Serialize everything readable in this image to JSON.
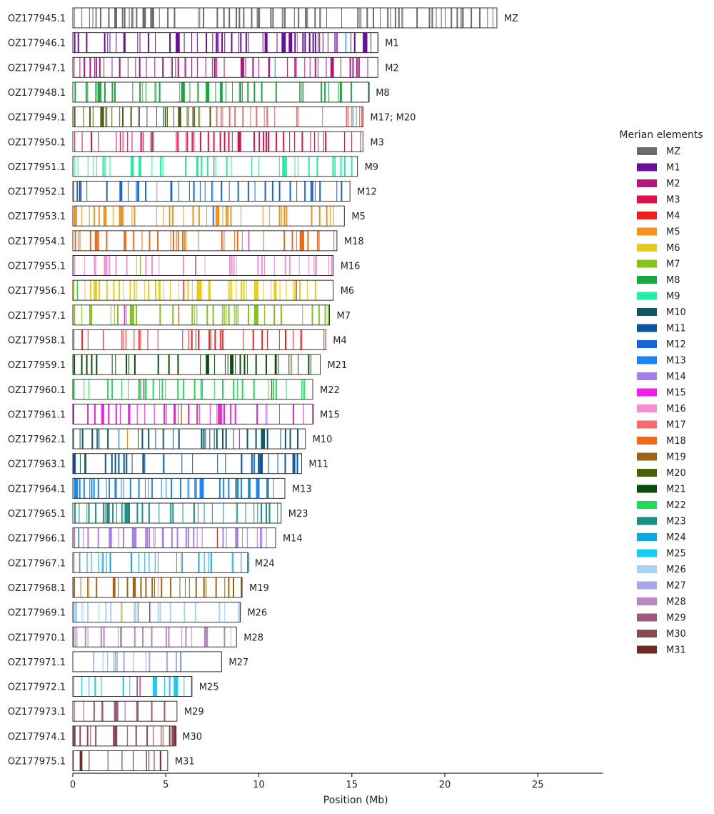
{
  "chart_data": {
    "type": "chromosome-painting",
    "xlabel": "Position (Mb)",
    "xlim": [
      0,
      28.5
    ],
    "xticks": [
      0,
      5,
      10,
      15,
      20,
      25
    ],
    "grid": false,
    "legend": {
      "title": "Merian elements",
      "placement": "right"
    },
    "colors": {
      "MZ": "#6b6b6b",
      "M1": "#6a0e9c",
      "M2": "#b5157e",
      "M3": "#e0104e",
      "M4": "#f01f1f",
      "M5": "#f5921b",
      "M6": "#e8cc15",
      "M7": "#86c21a",
      "M8": "#19a843",
      "M9": "#1ff0a5",
      "M10": "#0c5766",
      "M11": "#0b559f",
      "M12": "#1565d8",
      "M13": "#1a84f0",
      "M14": "#a87df0",
      "M15": "#f21ee8",
      "M16": "#f58ed4",
      "M17": "#f56b6b",
      "M18": "#f06a16",
      "M19": "#9e6414",
      "M20": "#4a5e0e",
      "M21": "#0c4d0c",
      "M22": "#1bde55",
      "M23": "#178f85",
      "M24": "#12a6e0",
      "M25": "#14ccf5",
      "M26": "#a6d4f5",
      "M27": "#a8a8ea",
      "M28": "#b889c0",
      "M29": "#9c5a7e",
      "M30": "#8a4a4e",
      "M31": "#6e2b24"
    },
    "legend_entries": [
      "MZ",
      "M1",
      "M2",
      "M3",
      "M4",
      "M5",
      "M6",
      "M7",
      "M8",
      "M9",
      "M10",
      "M11",
      "M12",
      "M13",
      "M14",
      "M15",
      "M16",
      "M17",
      "M18",
      "M19",
      "M20",
      "M21",
      "M22",
      "M23",
      "M24",
      "M25",
      "M26",
      "M27",
      "M28",
      "M29",
      "M30",
      "M31"
    ],
    "chromosomes": [
      {
        "name": "OZ177945.1",
        "length": 22.8,
        "label": "MZ",
        "primary": "MZ",
        "segments": [
          {
            "element": "MZ",
            "start": 0,
            "end": 22.8
          }
        ],
        "dens": 0.3
      },
      {
        "name": "OZ177946.1",
        "length": 16.4,
        "label": "M1",
        "primary": "M1",
        "segments": [
          {
            "element": "M1",
            "start": 0,
            "end": 16.4
          }
        ],
        "dens": 0.32
      },
      {
        "name": "OZ177947.1",
        "length": 16.4,
        "label": "M2",
        "primary": "M2",
        "segments": [
          {
            "element": "M2",
            "start": 0,
            "end": 16.4
          }
        ],
        "dens": 0.3
      },
      {
        "name": "OZ177948.1",
        "length": 15.9,
        "label": "M8",
        "primary": "M8",
        "segments": [
          {
            "element": "M8",
            "start": 0,
            "end": 15.9
          }
        ],
        "dens": 0.26
      },
      {
        "name": "OZ177949.1",
        "length": 15.6,
        "label": "M17; M20",
        "primary": "M20",
        "segments": [
          {
            "element": "M20",
            "start": 0,
            "end": 7.7
          },
          {
            "element": "M17",
            "start": 7.7,
            "end": 15.6
          }
        ],
        "dens": 0.3
      },
      {
        "name": "OZ177950.1",
        "length": 15.6,
        "label": "M3",
        "primary": "M3",
        "segments": [
          {
            "element": "M3",
            "start": 0,
            "end": 15.6
          }
        ],
        "dens": 0.32
      },
      {
        "name": "OZ177951.1",
        "length": 15.3,
        "label": "M9",
        "primary": "M9",
        "segments": [
          {
            "element": "M9",
            "start": 0,
            "end": 15.3
          }
        ],
        "dens": 0.24
      },
      {
        "name": "OZ177952.1",
        "length": 14.9,
        "label": "M12",
        "primary": "M12",
        "segments": [
          {
            "element": "M12",
            "start": 0,
            "end": 14.9
          }
        ],
        "dens": 0.26
      },
      {
        "name": "OZ177953.1",
        "length": 14.6,
        "label": "M5",
        "primary": "M5",
        "segments": [
          {
            "element": "M5",
            "start": 0,
            "end": 14.6
          }
        ],
        "dens": 0.28
      },
      {
        "name": "OZ177954.1",
        "length": 14.2,
        "label": "M18",
        "primary": "M18",
        "segments": [
          {
            "element": "M18",
            "start": 0,
            "end": 14.2
          }
        ],
        "dens": 0.26
      },
      {
        "name": "OZ177955.1",
        "length": 14.0,
        "label": "M16",
        "primary": "M16",
        "segments": [
          {
            "element": "M16",
            "start": 0,
            "end": 14.0
          }
        ],
        "dens": 0.22
      },
      {
        "name": "OZ177956.1",
        "length": 14.0,
        "label": "M6",
        "primary": "M6",
        "segments": [
          {
            "element": "M6",
            "start": 0,
            "end": 13.1
          }
        ],
        "dens": 0.34
      },
      {
        "name": "OZ177957.1",
        "length": 13.8,
        "label": "M7",
        "primary": "M7",
        "segments": [
          {
            "element": "M7",
            "start": 0,
            "end": 13.8
          }
        ],
        "dens": 0.28
      },
      {
        "name": "OZ177958.1",
        "length": 13.6,
        "label": "M4",
        "primary": "M4",
        "segments": [
          {
            "element": "M4",
            "start": 0,
            "end": 13.6
          }
        ],
        "dens": 0.24
      },
      {
        "name": "OZ177959.1",
        "length": 13.3,
        "label": "M21",
        "primary": "M21",
        "segments": [
          {
            "element": "M21",
            "start": 0,
            "end": 13.3
          }
        ],
        "dens": 0.24
      },
      {
        "name": "OZ177960.1",
        "length": 12.9,
        "label": "M22",
        "primary": "M22",
        "segments": [
          {
            "element": "M22",
            "start": 0,
            "end": 12.9
          }
        ],
        "dens": 0.22
      },
      {
        "name": "OZ177961.1",
        "length": 12.9,
        "label": "M15",
        "primary": "M15",
        "segments": [
          {
            "element": "M15",
            "start": 0,
            "end": 12.9
          }
        ],
        "dens": 0.26
      },
      {
        "name": "OZ177962.1",
        "length": 12.5,
        "label": "M10",
        "primary": "M10",
        "segments": [
          {
            "element": "M10",
            "start": 0,
            "end": 12.5
          }
        ],
        "dens": 0.3
      },
      {
        "name": "OZ177963.1",
        "length": 12.3,
        "label": "M11",
        "primary": "M11",
        "segments": [
          {
            "element": "M11",
            "start": 0,
            "end": 12.3
          }
        ],
        "dens": 0.26
      },
      {
        "name": "OZ177964.1",
        "length": 11.4,
        "label": "M13",
        "primary": "M13",
        "segments": [
          {
            "element": "M13",
            "start": 0,
            "end": 11.4
          }
        ],
        "dens": 0.3
      },
      {
        "name": "OZ177965.1",
        "length": 11.2,
        "label": "M23",
        "primary": "M23",
        "segments": [
          {
            "element": "M23",
            "start": 0,
            "end": 11.2
          }
        ],
        "dens": 0.24
      },
      {
        "name": "OZ177966.1",
        "length": 10.9,
        "label": "M14",
        "primary": "M14",
        "segments": [
          {
            "element": "M14",
            "start": 0,
            "end": 10.9
          }
        ],
        "dens": 0.24
      },
      {
        "name": "OZ177967.1",
        "length": 9.4,
        "label": "M24",
        "primary": "M24",
        "segments": [
          {
            "element": "M24",
            "start": 0,
            "end": 9.4
          }
        ],
        "dens": 0.32
      },
      {
        "name": "OZ177968.1",
        "length": 9.1,
        "label": "M19",
        "primary": "M19",
        "segments": [
          {
            "element": "M19",
            "start": 0,
            "end": 9.1
          }
        ],
        "dens": 0.3
      },
      {
        "name": "OZ177969.1",
        "length": 9.0,
        "label": "M26",
        "primary": "M26",
        "segments": [
          {
            "element": "M26",
            "start": 0,
            "end": 9.0
          }
        ],
        "dens": 0.18
      },
      {
        "name": "OZ177970.1",
        "length": 8.8,
        "label": "M28",
        "primary": "M28",
        "segments": [
          {
            "element": "M28",
            "start": 0,
            "end": 8.8
          }
        ],
        "dens": 0.14
      },
      {
        "name": "OZ177971.1",
        "length": 8.0,
        "label": "M27",
        "primary": "M27",
        "segments": [
          {
            "element": "M27",
            "start": 1.0,
            "end": 6.0
          }
        ],
        "dens": 0.16
      },
      {
        "name": "OZ177972.1",
        "length": 6.4,
        "label": "M25",
        "primary": "M25",
        "segments": [
          {
            "element": "M25",
            "start": 0,
            "end": 6.4
          }
        ],
        "dens": 0.3
      },
      {
        "name": "OZ177973.1",
        "length": 5.6,
        "label": "M29",
        "primary": "M29",
        "segments": [
          {
            "element": "M29",
            "start": 0,
            "end": 5.6
          }
        ],
        "dens": 0.16
      },
      {
        "name": "OZ177974.1",
        "length": 5.5,
        "label": "M30",
        "primary": "M30",
        "segments": [
          {
            "element": "M30",
            "start": 0,
            "end": 5.5
          }
        ],
        "dens": 0.16
      },
      {
        "name": "OZ177975.1",
        "length": 5.1,
        "label": "M31",
        "primary": "M31",
        "segments": [
          {
            "element": "M31",
            "start": 0,
            "end": 5.1
          }
        ],
        "dens": 0.16
      }
    ]
  }
}
